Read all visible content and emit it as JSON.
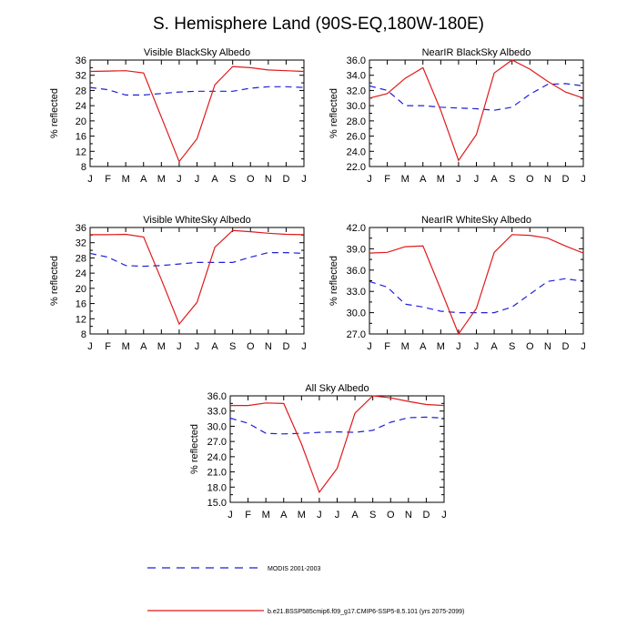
{
  "page_title": "S. Hemisphere Land (90S-EQ,180W-180E)",
  "colors": {
    "modis": "#1f1fd8",
    "model": "#e0191a"
  },
  "legend": {
    "modis_label": "MODIS 2001-2003",
    "model_label": "b.e21.BSSP585cmip6.f09_g17.CMIP6-SSP5-8.5.101 (yrs 2075-2099)"
  },
  "chart_data": [
    {
      "type": "line",
      "title": "Visible BlackSky Albedo",
      "xlabel": "",
      "ylabel": "% reflected",
      "categories": [
        "J",
        "F",
        "M",
        "A",
        "M",
        "J",
        "J",
        "A",
        "S",
        "O",
        "N",
        "D",
        "J"
      ],
      "ylim": [
        8,
        36
      ],
      "yticks": [
        "8",
        "12",
        "16",
        "20",
        "24",
        "28",
        "32",
        "36"
      ],
      "series": [
        {
          "name": "MODIS 2001-2003",
          "style": "dashed",
          "color": "#1f1fd8",
          "values": [
            28.8,
            28.2,
            26.8,
            26.8,
            27.2,
            27.6,
            27.8,
            27.8,
            27.8,
            28.6,
            29.0,
            29.0,
            28.8
          ]
        },
        {
          "name": "b.e21.BSSP585cmip6.f09_g17.CMIP6-SSP5-8.5.101 (yrs 2075-2099)",
          "style": "solid",
          "color": "#e0191a",
          "values": [
            33.0,
            33.1,
            33.2,
            32.6,
            21.0,
            9.3,
            15.3,
            29.5,
            34.3,
            34.0,
            33.4,
            33.2,
            33.0
          ]
        }
      ]
    },
    {
      "type": "line",
      "title": "NearIR BlackSky Albedo",
      "xlabel": "",
      "ylabel": "% reflected",
      "categories": [
        "J",
        "F",
        "M",
        "A",
        "M",
        "J",
        "J",
        "A",
        "S",
        "O",
        "N",
        "D",
        "J"
      ],
      "ylim": [
        22,
        36
      ],
      "yticks": [
        "22.0",
        "24.0",
        "26.0",
        "28.0",
        "30.0",
        "32.0",
        "34.0",
        "36.0"
      ],
      "series": [
        {
          "name": "MODIS 2001-2003",
          "style": "dashed",
          "color": "#1f1fd8",
          "values": [
            32.6,
            32.0,
            30.0,
            30.0,
            29.8,
            29.7,
            29.6,
            29.4,
            29.8,
            31.5,
            32.8,
            32.9,
            32.6
          ]
        },
        {
          "name": "b.e21.BSSP585cmip6.f09_g17.CMIP6-SSP5-8.5.101 (yrs 2075-2099)",
          "style": "solid",
          "color": "#e0191a",
          "values": [
            31.0,
            31.6,
            33.6,
            35.0,
            29.4,
            22.8,
            26.2,
            34.3,
            36.0,
            34.8,
            33.2,
            31.8,
            31.0
          ]
        }
      ]
    },
    {
      "type": "line",
      "title": "Visible WhiteSky Albedo",
      "xlabel": "",
      "ylabel": "% reflected",
      "categories": [
        "J",
        "F",
        "M",
        "A",
        "M",
        "J",
        "J",
        "A",
        "S",
        "O",
        "N",
        "D",
        "J"
      ],
      "ylim": [
        8,
        36
      ],
      "yticks": [
        "8",
        "12",
        "16",
        "20",
        "24",
        "28",
        "32",
        "36"
      ],
      "series": [
        {
          "name": "MODIS 2001-2003",
          "style": "dashed",
          "color": "#1f1fd8",
          "values": [
            29.2,
            28.2,
            26.0,
            25.8,
            26.0,
            26.4,
            26.8,
            26.8,
            26.8,
            28.2,
            29.4,
            29.4,
            29.2
          ]
        },
        {
          "name": "b.e21.BSSP585cmip6.f09_g17.CMIP6-SSP5-8.5.101 (yrs 2075-2099)",
          "style": "solid",
          "color": "#e0191a",
          "values": [
            34.1,
            34.1,
            34.2,
            33.5,
            22.3,
            10.6,
            16.3,
            30.8,
            35.2,
            34.9,
            34.5,
            34.2,
            34.1
          ]
        }
      ]
    },
    {
      "type": "line",
      "title": "NearIR WhiteSky Albedo",
      "xlabel": "",
      "ylabel": "% reflected",
      "categories": [
        "J",
        "F",
        "M",
        "A",
        "M",
        "J",
        "J",
        "A",
        "S",
        "O",
        "N",
        "D",
        "J"
      ],
      "ylim": [
        27,
        42
      ],
      "yticks": [
        "27.0",
        "30.0",
        "33.0",
        "36.0",
        "39.0",
        "42.0"
      ],
      "series": [
        {
          "name": "MODIS 2001-2003",
          "style": "dashed",
          "color": "#1f1fd8",
          "values": [
            34.4,
            33.6,
            31.2,
            30.8,
            30.2,
            30.0,
            30.0,
            30.0,
            30.8,
            32.6,
            34.4,
            34.8,
            34.4
          ]
        },
        {
          "name": "b.e21.BSSP585cmip6.f09_g17.CMIP6-SSP5-8.5.101 (yrs 2075-2099)",
          "style": "solid",
          "color": "#e0191a",
          "values": [
            38.4,
            38.5,
            39.3,
            39.4,
            33.3,
            27.0,
            30.6,
            38.5,
            41.0,
            40.9,
            40.5,
            39.4,
            38.4
          ]
        }
      ]
    },
    {
      "type": "line",
      "title": "All Sky Albedo",
      "xlabel": "",
      "ylabel": "% reflected",
      "categories": [
        "J",
        "F",
        "M",
        "A",
        "M",
        "J",
        "J",
        "A",
        "S",
        "O",
        "N",
        "D",
        "J"
      ],
      "ylim": [
        15,
        36
      ],
      "yticks": [
        "15.0",
        "18.0",
        "21.0",
        "24.0",
        "27.0",
        "30.0",
        "33.0",
        "36.0"
      ],
      "series": [
        {
          "name": "MODIS 2001-2003",
          "style": "dashed",
          "color": "#1f1fd8",
          "values": [
            31.6,
            30.6,
            28.6,
            28.5,
            28.6,
            28.8,
            28.9,
            28.8,
            29.2,
            30.8,
            31.7,
            31.8,
            31.6
          ]
        },
        {
          "name": "b.e21.BSSP585cmip6.f09_g17.CMIP6-SSP5-8.5.101 (yrs 2075-2099)",
          "style": "solid",
          "color": "#e0191a",
          "values": [
            34.1,
            34.1,
            34.6,
            34.5,
            26.5,
            17.0,
            21.7,
            32.6,
            36.0,
            35.6,
            34.9,
            34.3,
            34.1
          ]
        }
      ]
    }
  ]
}
